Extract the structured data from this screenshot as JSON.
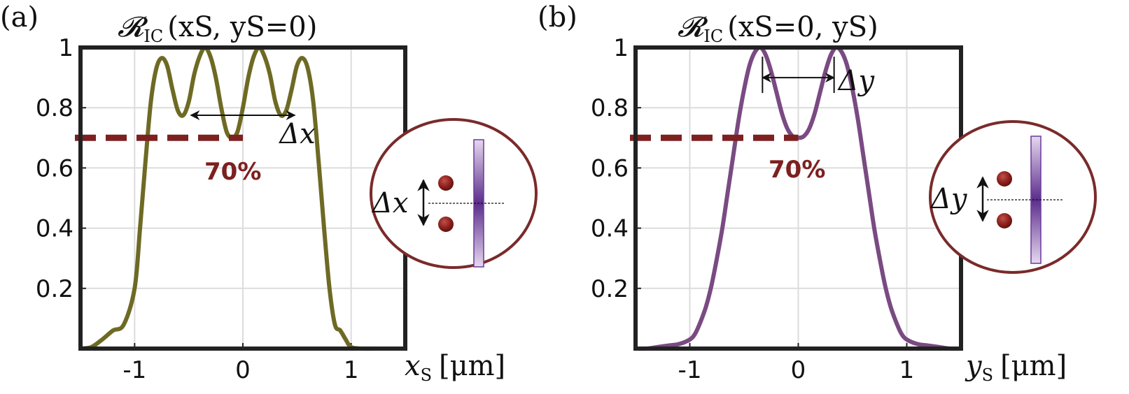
{
  "colors": {
    "frame": "#222222",
    "grid": "#dcdcdc",
    "series_a": "#6e6a24",
    "series_b": "#7a4a82",
    "threshold": "#7d2020",
    "inset_ring": "#7a2a2a",
    "detector_dark": "#5b2d8c",
    "detector_light": "#e6d8ef"
  },
  "threshold": {
    "label": "70%",
    "value": 0.7
  },
  "chart_data": [
    {
      "panel_label": "(a)",
      "type": "line",
      "title": "𝓡IC(xS, yS=0)",
      "title_main": "𝓡",
      "title_sub": "IC",
      "title_args": "(xS, yS=0)",
      "xlabel": "xS [μm]",
      "xlabel_main": "x",
      "xlabel_sub": "S",
      "xlabel_unit": "[μm]",
      "ylabel": "",
      "xlim": [
        -1.5,
        1.5
      ],
      "ylim": [
        0,
        1
      ],
      "xticks": [
        -1,
        0,
        1
      ],
      "xtick_labels": [
        "-1",
        "0",
        "1"
      ],
      "yticks": [
        0.2,
        0.4,
        0.6,
        0.8,
        1
      ],
      "ytick_labels": [
        "0.2",
        "0.4",
        "0.6",
        "0.8",
        "1"
      ],
      "grid": true,
      "series": [
        {
          "x": [
            -1.5,
            -1.4,
            -1.3,
            -1.2,
            -1.1,
            -1.0,
            -0.95,
            -0.9,
            -0.85,
            -0.8,
            -0.75,
            -0.7,
            -0.65,
            -0.6,
            -0.55,
            -0.5,
            -0.45,
            -0.4,
            -0.35,
            -0.3,
            -0.25,
            -0.2,
            -0.15,
            -0.1,
            -0.05,
            0.0,
            0.05,
            0.1,
            0.15,
            0.2,
            0.25,
            0.3,
            0.35,
            0.4,
            0.45,
            0.5,
            0.55,
            0.6,
            0.65,
            0.7,
            0.75,
            0.8,
            0.85,
            0.9,
            0.95,
            1.0,
            1.1,
            1.2,
            1.3,
            1.4,
            1.5
          ],
          "y": [
            0.0,
            0.005,
            0.03,
            0.06,
            0.08,
            0.2,
            0.4,
            0.62,
            0.82,
            0.93,
            0.965,
            0.94,
            0.86,
            0.79,
            0.775,
            0.82,
            0.91,
            0.97,
            1.0,
            0.97,
            0.9,
            0.8,
            0.72,
            0.7,
            0.72,
            0.8,
            0.9,
            0.97,
            1.0,
            0.97,
            0.91,
            0.82,
            0.775,
            0.79,
            0.86,
            0.94,
            0.965,
            0.93,
            0.82,
            0.62,
            0.4,
            0.2,
            0.08,
            0.06,
            0.03,
            0.005,
            0.0,
            0.0,
            0.0,
            0.0,
            0.0
          ]
        }
      ],
      "separation_label": "Δx",
      "separation_range": [
        -0.48,
        0.48
      ],
      "separation_y": 0.775,
      "threshold_x_end": 0.0
    },
    {
      "panel_label": "(b)",
      "type": "line",
      "title": "𝓡IC(xS=0, yS)",
      "title_main": "𝓡",
      "title_sub": "IC",
      "title_args": "(xS=0, yS)",
      "xlabel": "yS [μm]",
      "xlabel_main": "y",
      "xlabel_sub": "S",
      "xlabel_unit": "[μm]",
      "ylabel": "",
      "xlim": [
        -1.5,
        1.5
      ],
      "ylim": [
        0,
        1
      ],
      "xticks": [
        -1,
        0,
        1
      ],
      "xtick_labels": [
        "-1",
        "0",
        "1"
      ],
      "yticks": [
        0.2,
        0.4,
        0.6,
        0.8,
        1
      ],
      "ytick_labels": [
        "0.2",
        "0.4",
        "0.6",
        "0.8",
        "1"
      ],
      "grid": true,
      "series": [
        {
          "x": [
            -1.5,
            -1.4,
            -1.3,
            -1.2,
            -1.1,
            -1.0,
            -0.95,
            -0.9,
            -0.85,
            -0.8,
            -0.75,
            -0.7,
            -0.65,
            -0.6,
            -0.55,
            -0.5,
            -0.45,
            -0.4,
            -0.35,
            -0.3,
            -0.25,
            -0.2,
            -0.15,
            -0.1,
            -0.05,
            0.0,
            0.05,
            0.1,
            0.15,
            0.2,
            0.25,
            0.3,
            0.35,
            0.4,
            0.45,
            0.5,
            0.55,
            0.6,
            0.65,
            0.7,
            0.75,
            0.8,
            0.85,
            0.9,
            0.95,
            1.0,
            1.1,
            1.2,
            1.3,
            1.4,
            1.5
          ],
          "y": [
            0.0,
            0.0,
            0.005,
            0.01,
            0.015,
            0.03,
            0.05,
            0.09,
            0.14,
            0.21,
            0.3,
            0.4,
            0.52,
            0.64,
            0.76,
            0.86,
            0.94,
            0.985,
            1.0,
            0.975,
            0.92,
            0.85,
            0.78,
            0.73,
            0.705,
            0.7,
            0.705,
            0.73,
            0.78,
            0.85,
            0.92,
            0.975,
            1.0,
            0.985,
            0.94,
            0.86,
            0.76,
            0.64,
            0.52,
            0.4,
            0.3,
            0.21,
            0.14,
            0.09,
            0.05,
            0.03,
            0.015,
            0.01,
            0.005,
            0.0,
            0.0
          ]
        }
      ],
      "separation_label": "Δy",
      "separation_range": [
        -0.33,
        0.33
      ],
      "separation_y": 0.9,
      "threshold_x_end": 0.0
    }
  ],
  "insets": [
    {
      "separation_label": "Δx"
    },
    {
      "separation_label": "Δy"
    }
  ]
}
